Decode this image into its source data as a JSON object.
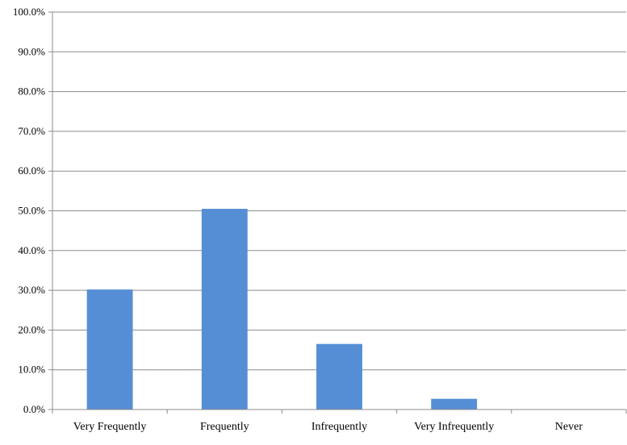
{
  "chart_data": {
    "type": "bar",
    "title": "",
    "xlabel": "",
    "ylabel": "",
    "categories": [
      "Very Frequently",
      "Frequently",
      "Infrequently",
      "Very Infrequently",
      "Never"
    ],
    "values": [
      30.2,
      50.5,
      16.5,
      2.7,
      0.0
    ],
    "value_unit": "%",
    "ylim": [
      0,
      100
    ],
    "yticks": [
      "0.0%",
      "10.0%",
      "20.0%",
      "30.0%",
      "40.0%",
      "50.0%",
      "60.0%",
      "70.0%",
      "80.0%",
      "90.0%",
      "100.0%"
    ],
    "grid": true,
    "legend": "none",
    "colors": {
      "bar": "#558ED5",
      "grid": "#8C8C8C",
      "axis": "#8C8C8C",
      "text": "#000000"
    }
  }
}
